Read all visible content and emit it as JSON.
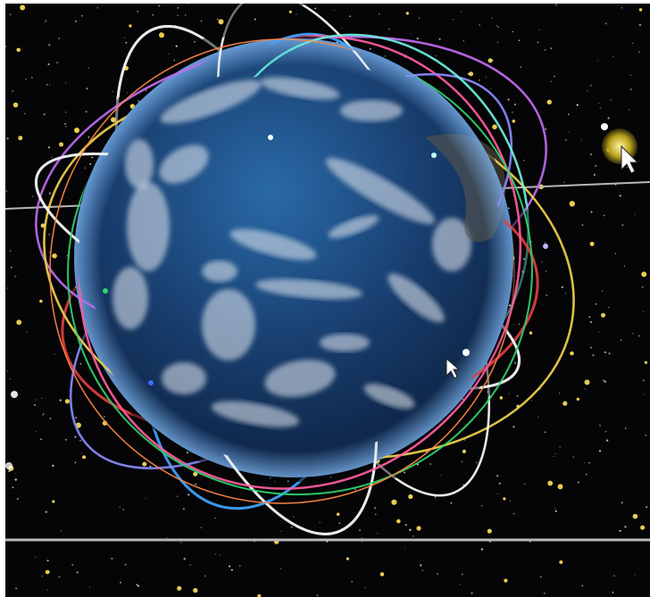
{
  "scene": {
    "background_color": "#050406",
    "star_colors": [
      "#ffe35a",
      "#ffffff",
      "#d9d9d9",
      "#ffd447"
    ],
    "guide_line_color": "#b8b8b8",
    "earth": {
      "ocean_color": "#1b3f72",
      "ocean_dark": "#0d2346",
      "rim_color": "#88c2ff",
      "cloud_color": "#e8edf4",
      "land_color": "#7f6f5c"
    },
    "orbit_colors": [
      "#e04040",
      "#8a8cff",
      "#3fa4ff",
      "#30d46f",
      "#f0d24e",
      "#ff5d9f",
      "#c16cf0",
      "#6cf2e1",
      "#ffffff",
      "#ff8844"
    ],
    "cursor_color": "#ffffff",
    "highlight_color": "#b9a11c"
  }
}
